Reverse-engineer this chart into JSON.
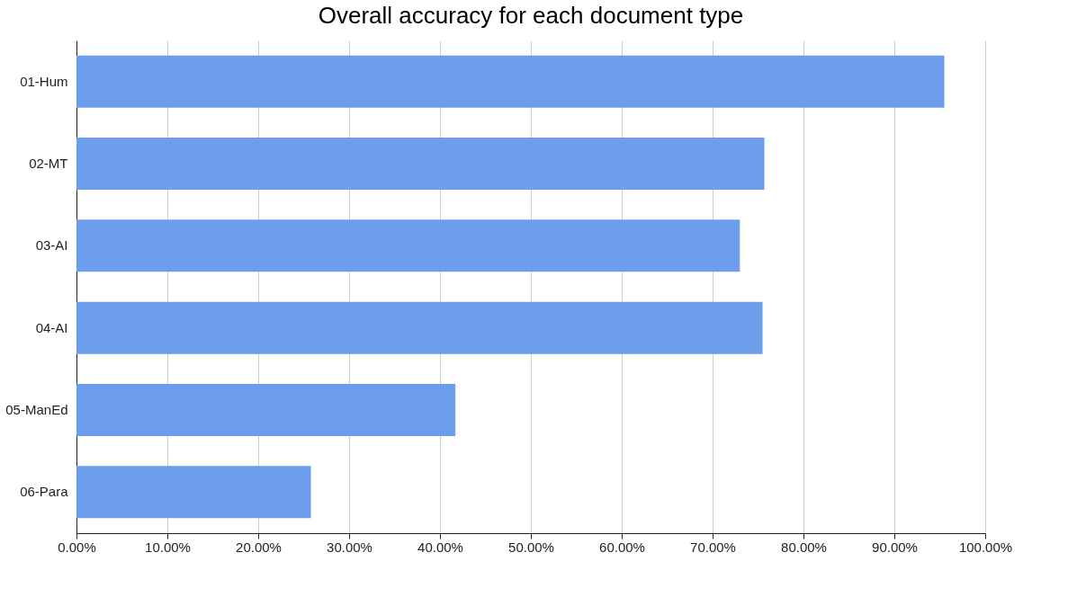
{
  "chart_data": {
    "type": "bar",
    "orientation": "horizontal",
    "title": "Overall accuracy for each document type",
    "categories": [
      "01-Hum",
      "02-MT",
      "03-AI",
      "04-AI",
      "05-ManEd",
      "06-Para"
    ],
    "values": [
      95.5,
      75.7,
      73.0,
      75.5,
      41.7,
      25.8
    ],
    "color": "#6d9eeb",
    "xlim": [
      0,
      100
    ],
    "xticks": [
      {
        "value": 0,
        "label": "0.00%"
      },
      {
        "value": 10,
        "label": "10.00%"
      },
      {
        "value": 20,
        "label": "20.00%"
      },
      {
        "value": 30,
        "label": "30.00%"
      },
      {
        "value": 40,
        "label": "40.00%"
      },
      {
        "value": 50,
        "label": "50.00%"
      },
      {
        "value": 60,
        "label": "60.00%"
      },
      {
        "value": 70,
        "label": "70.00%"
      },
      {
        "value": 80,
        "label": "80.00%"
      },
      {
        "value": 90,
        "label": "90.00%"
      },
      {
        "value": 100,
        "label": "100.00%"
      }
    ],
    "grid": "x"
  }
}
